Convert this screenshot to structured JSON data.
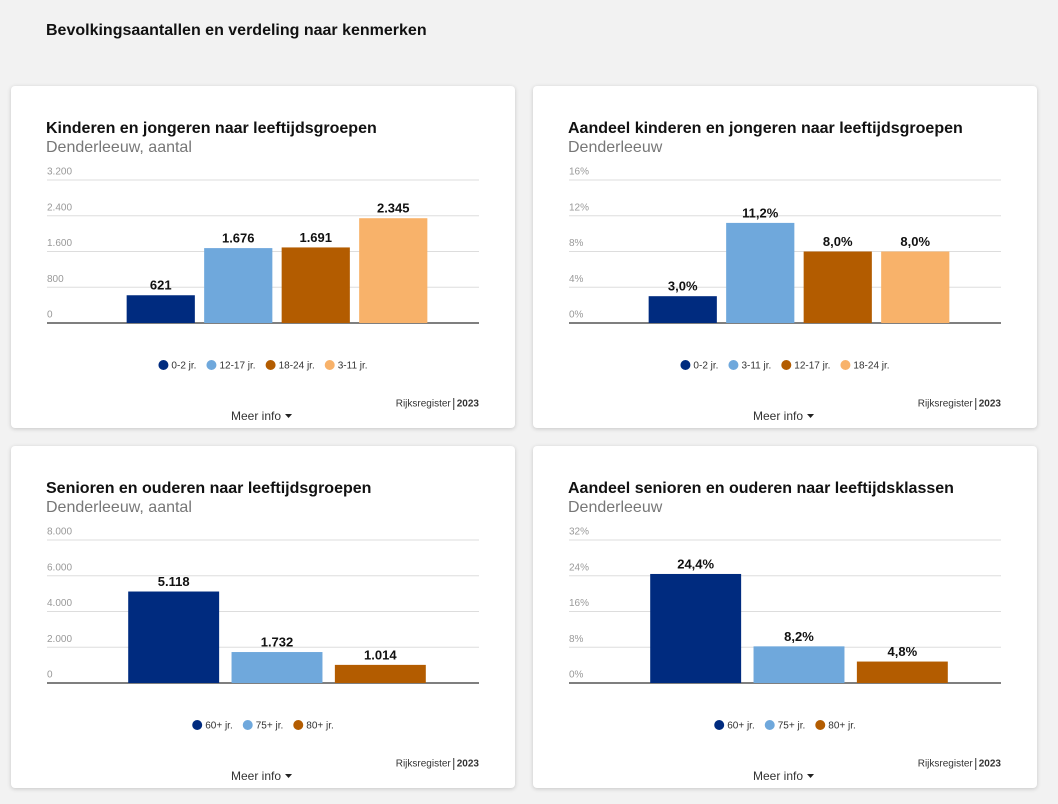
{
  "title": "Bevolkingsaantallen en verdeling naar kenmerken",
  "chart_data": [
    {
      "type": "bar",
      "title": "Kinderen en jongeren naar leeftijdsgroepen",
      "subtitle": "Denderleeuw, aantal",
      "categories": [
        "0-2 jr.",
        "12-17 jr.",
        "18-24 jr.",
        "3-11 jr."
      ],
      "values": [
        621,
        1676,
        1691,
        2345
      ],
      "value_labels": [
        "621",
        "1.676",
        "1.691",
        "2.345"
      ],
      "colors": [
        "#002b7f",
        "#6fa8dc",
        "#b35c00",
        "#f8b26a"
      ],
      "ylim": [
        0,
        3200
      ],
      "yticks": [
        0,
        {
          "value": 800,
          "label": "800"
        },
        {
          "value": 1600,
          "label": "1.600"
        },
        {
          "value": 2400,
          "label": "2.400"
        },
        {
          "value": 3200,
          "label": "3.200"
        }
      ],
      "grid": true,
      "legend": "bottom",
      "source": "Rijksregister",
      "year": "2023",
      "more_info": "Meer info"
    },
    {
      "type": "bar",
      "title": "Aandeel kinderen en jongeren naar leeftijdsgroepen",
      "subtitle": "Denderleeuw",
      "categories": [
        "0-2 jr.",
        "3-11 jr.",
        "12-17 jr.",
        "18-24 jr."
      ],
      "values": [
        3.0,
        11.2,
        8.0,
        8.0
      ],
      "value_labels": [
        "3,0%",
        "11,2%",
        "8,0%",
        "8,0%"
      ],
      "colors": [
        "#002b7f",
        "#6fa8dc",
        "#b35c00",
        "#f8b26a"
      ],
      "ylim": [
        0,
        16
      ],
      "yticks": [
        {
          "value": 0,
          "label": "0%"
        },
        {
          "value": 4,
          "label": "4%"
        },
        {
          "value": 8,
          "label": "8%"
        },
        {
          "value": 12,
          "label": "12%"
        },
        {
          "value": 16,
          "label": "16%"
        }
      ],
      "grid": true,
      "legend": "bottom",
      "source": "Rijksregister",
      "year": "2023",
      "more_info": "Meer info"
    },
    {
      "type": "bar",
      "title": "Senioren en ouderen naar leeftijdsgroepen",
      "subtitle": "Denderleeuw, aantal",
      "categories": [
        "60+ jr.",
        "75+ jr.",
        "80+ jr."
      ],
      "values": [
        5118,
        1732,
        1014
      ],
      "value_labels": [
        "5.118",
        "1.732",
        "1.014"
      ],
      "colors": [
        "#002b7f",
        "#6fa8dc",
        "#b35c00"
      ],
      "ylim": [
        0,
        8000
      ],
      "yticks": [
        0,
        {
          "value": 2000,
          "label": "2.000"
        },
        {
          "value": 4000,
          "label": "4.000"
        },
        {
          "value": 6000,
          "label": "6.000"
        },
        {
          "value": 8000,
          "label": "8.000"
        }
      ],
      "grid": true,
      "legend": "bottom",
      "source": "Rijksregister",
      "year": "2023",
      "more_info": "Meer info"
    },
    {
      "type": "bar",
      "title": "Aandeel senioren en ouderen naar leeftijdsklassen",
      "subtitle": "Denderleeuw",
      "categories": [
        "60+ jr.",
        "75+ jr.",
        "80+ jr."
      ],
      "values": [
        24.4,
        8.2,
        4.8
      ],
      "value_labels": [
        "24,4%",
        "8,2%",
        "4,8%"
      ],
      "colors": [
        "#002b7f",
        "#6fa8dc",
        "#b35c00"
      ],
      "ylim": [
        0,
        32
      ],
      "yticks": [
        {
          "value": 0,
          "label": "0%"
        },
        {
          "value": 8,
          "label": "8%"
        },
        {
          "value": 16,
          "label": "16%"
        },
        {
          "value": 24,
          "label": "24%"
        },
        {
          "value": 32,
          "label": "32%"
        }
      ],
      "grid": true,
      "legend": "bottom",
      "source": "Rijksregister",
      "year": "2023",
      "more_info": "Meer info"
    }
  ]
}
